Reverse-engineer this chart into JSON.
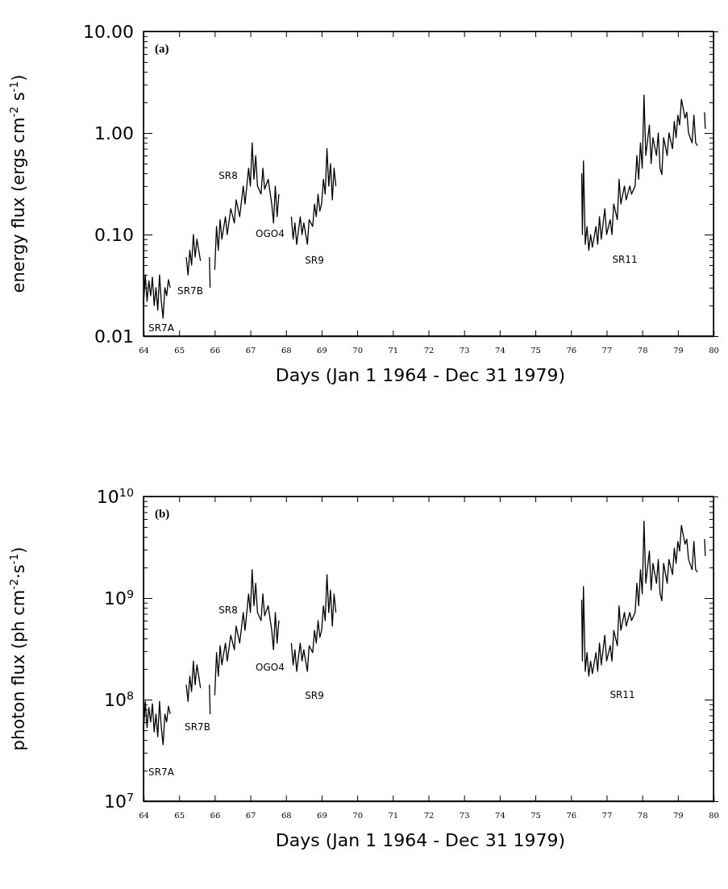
{
  "chart_data": [
    {
      "type": "line",
      "xlabel": "Days (Jan 1 1964 - Dec 31 1979)",
      "ylabel": "energy flux (ergs cm$^{-2}$ s$^{-1}$)",
      "log": true,
      "xlim": [
        64,
        80
      ],
      "xticks": [
        64,
        65,
        66,
        67,
        68,
        69,
        70,
        71,
        72,
        73,
        74,
        75,
        76,
        77,
        78,
        79,
        80
      ],
      "ylim": [
        0.01,
        10
      ],
      "yticks": [
        {
          "value": 0.01,
          "label": "0.01"
        },
        {
          "value": 0.02,
          "label": null
        },
        {
          "value": 0.03,
          "label": null
        },
        {
          "value": 0.04,
          "label": null
        },
        {
          "value": 0.05,
          "label": null
        },
        {
          "value": 0.06,
          "label": null
        },
        {
          "value": 0.07,
          "label": null
        },
        {
          "value": 0.08,
          "label": null
        },
        {
          "value": 0.09,
          "label": null
        },
        {
          "value": 0.1,
          "label": "0.10"
        },
        {
          "value": 0.2,
          "label": null
        },
        {
          "value": 0.3,
          "label": null
        },
        {
          "value": 0.4,
          "label": null
        },
        {
          "value": 0.5,
          "label": null
        },
        {
          "value": 0.6,
          "label": null
        },
        {
          "value": 0.7,
          "label": null
        },
        {
          "value": 0.8,
          "label": null
        },
        {
          "value": 0.9,
          "label": null
        },
        {
          "value": 1,
          "label": "1.00"
        },
        {
          "value": 2,
          "label": null
        },
        {
          "value": 3,
          "label": null
        },
        {
          "value": 4,
          "label": null
        },
        {
          "value": 5,
          "label": null
        },
        {
          "value": 6,
          "label": null
        },
        {
          "value": 7,
          "label": null
        },
        {
          "value": 8,
          "label": null
        },
        {
          "value": 9,
          "label": null
        },
        {
          "value": 10,
          "label": "10.00"
        }
      ],
      "annotations": [
        "(a)",
        "SR7A",
        "SR7B",
        "SR8",
        "OGO4",
        "SR9",
        "SR11"
      ],
      "x": [
        64.0,
        64.05,
        64.1,
        64.15,
        64.2,
        64.25,
        64.3,
        64.35,
        64.4,
        64.45,
        64.5,
        64.55,
        64.6,
        64.65,
        64.7,
        64.75,
        64.9,
        65.2,
        65.25,
        65.3,
        65.35,
        65.4,
        65.45,
        65.5,
        65.55,
        65.6,
        65.7,
        65.85,
        65.87,
        65.95,
        66.0,
        66.05,
        66.1,
        66.15,
        66.2,
        66.3,
        66.35,
        66.45,
        66.55,
        66.6,
        66.7,
        66.8,
        66.85,
        66.95,
        67.0,
        67.05,
        67.1,
        67.15,
        67.2,
        67.3,
        67.35,
        67.4,
        67.5,
        67.6,
        67.65,
        67.7,
        67.75,
        67.8,
        68.0,
        68.15,
        68.2,
        68.25,
        68.3,
        68.4,
        68.45,
        68.5,
        68.6,
        68.65,
        68.75,
        68.8,
        68.85,
        68.9,
        68.95,
        69.0,
        69.05,
        69.1,
        69.15,
        69.2,
        69.25,
        69.3,
        69.35,
        69.4,
        72.0,
        76.3,
        76.32,
        76.35,
        76.4,
        76.45,
        76.5,
        76.55,
        76.6,
        76.7,
        76.75,
        76.8,
        76.85,
        76.95,
        77.0,
        77.1,
        77.15,
        77.2,
        77.3,
        77.35,
        77.4,
        77.5,
        77.55,
        77.65,
        77.7,
        77.8,
        77.85,
        77.9,
        77.95,
        78.0,
        78.05,
        78.1,
        78.2,
        78.25,
        78.3,
        78.4,
        78.45,
        78.5,
        78.55,
        78.6,
        78.7,
        78.75,
        78.85,
        78.9,
        78.95,
        79.0,
        79.05,
        79.1,
        79.2,
        79.25,
        79.3,
        79.4,
        79.45,
        79.5,
        79.55,
        79.65,
        79.75,
        79.77
      ],
      "series": [
        {
          "color": "#000000",
          "values": [
            0.02,
            0.04,
            0.022,
            0.035,
            0.025,
            0.038,
            0.02,
            0.03,
            0.018,
            0.04,
            0.022,
            0.015,
            0.03,
            0.025,
            0.036,
            0.03,
            null,
            0.06,
            0.04,
            0.07,
            0.05,
            0.1,
            0.06,
            0.09,
            0.07,
            0.055,
            null,
            0.06,
            0.03,
            null,
            0.045,
            0.12,
            0.07,
            0.14,
            0.09,
            0.15,
            0.1,
            0.18,
            0.13,
            0.22,
            0.15,
            0.3,
            0.2,
            0.45,
            0.3,
            0.8,
            0.35,
            0.6,
            0.3,
            0.25,
            0.45,
            0.28,
            0.35,
            0.2,
            0.13,
            0.3,
            0.15,
            0.25,
            null,
            0.15,
            0.09,
            0.13,
            0.08,
            0.15,
            0.1,
            0.13,
            0.08,
            0.14,
            0.12,
            0.2,
            0.15,
            0.25,
            0.17,
            0.2,
            0.35,
            0.25,
            0.7,
            0.3,
            0.5,
            0.22,
            0.45,
            0.3,
            null,
            0.4,
            0.1,
            0.53,
            0.08,
            0.12,
            0.07,
            0.1,
            0.075,
            0.12,
            0.08,
            0.15,
            0.09,
            0.18,
            0.1,
            0.14,
            0.1,
            0.2,
            0.14,
            0.35,
            0.2,
            0.3,
            0.22,
            0.3,
            0.25,
            0.3,
            0.6,
            0.35,
            0.8,
            0.45,
            2.36,
            0.6,
            1.2,
            0.5,
            0.9,
            0.6,
            1.0,
            0.45,
            0.39,
            0.9,
            0.6,
            1.0,
            0.7,
            1.3,
            0.9,
            1.5,
            1.2,
            2.15,
            1.4,
            1.6,
            1.0,
            0.8,
            1.5,
            0.8,
            0.75,
            null,
            1.6,
            1.1
          ]
        }
      ]
    },
    {
      "type": "line",
      "xlabel": "Days (Jan 1 1964 - Dec 31 1979)",
      "ylabel": "photon flux (ph cm$^{-2}$·s$^{-1}$)",
      "log": true,
      "xlim": [
        64,
        80
      ],
      "xticks": [
        64,
        65,
        66,
        67,
        68,
        69,
        70,
        71,
        72,
        73,
        74,
        75,
        76,
        77,
        78,
        79,
        80
      ],
      "ylim": [
        10000000.0,
        10000000000.0
      ],
      "yticks": [
        {
          "value": 10000000.0,
          "label": "10$^{7}$"
        },
        {
          "value": 20000000.0,
          "label": null
        },
        {
          "value": 30000000.0,
          "label": null
        },
        {
          "value": 40000000.0,
          "label": null
        },
        {
          "value": 50000000.0,
          "label": null
        },
        {
          "value": 60000000.0,
          "label": null
        },
        {
          "value": 70000000.0,
          "label": null
        },
        {
          "value": 80000000.0,
          "label": null
        },
        {
          "value": 90000000.0,
          "label": null
        },
        {
          "value": 100000000.0,
          "label": "10$^{8}$"
        },
        {
          "value": 200000000.0,
          "label": null
        },
        {
          "value": 300000000.0,
          "label": null
        },
        {
          "value": 400000000.0,
          "label": null
        },
        {
          "value": 500000000.0,
          "label": null
        },
        {
          "value": 600000000.0,
          "label": null
        },
        {
          "value": 700000000.0,
          "label": null
        },
        {
          "value": 800000000.0,
          "label": null
        },
        {
          "value": 900000000.0,
          "label": null
        },
        {
          "value": 1000000000.0,
          "label": "10$^{9}$"
        },
        {
          "value": 2000000000.0,
          "label": null
        },
        {
          "value": 3000000000.0,
          "label": null
        },
        {
          "value": 4000000000.0,
          "label": null
        },
        {
          "value": 5000000000.0,
          "label": null
        },
        {
          "value": 6000000000.0,
          "label": null
        },
        {
          "value": 7000000000.0,
          "label": null
        },
        {
          "value": 8000000000.0,
          "label": null
        },
        {
          "value": 9000000000.0,
          "label": null
        },
        {
          "value": 10000000000.0,
          "label": "10$^{10}$"
        }
      ],
      "annotations": [
        "(b)",
        "SR7A",
        "SR7B",
        "SR8",
        "OGO4",
        "SR9",
        "SR11"
      ],
      "x": [
        64.0,
        64.05,
        64.1,
        64.15,
        64.2,
        64.25,
        64.3,
        64.35,
        64.4,
        64.45,
        64.5,
        64.55,
        64.6,
        64.65,
        64.7,
        64.75,
        64.9,
        65.2,
        65.25,
        65.3,
        65.35,
        65.4,
        65.45,
        65.5,
        65.55,
        65.6,
        65.7,
        65.85,
        65.87,
        65.95,
        66.0,
        66.05,
        66.1,
        66.15,
        66.2,
        66.3,
        66.35,
        66.45,
        66.55,
        66.6,
        66.7,
        66.8,
        66.85,
        66.95,
        67.0,
        67.05,
        67.1,
        67.15,
        67.2,
        67.3,
        67.35,
        67.4,
        67.5,
        67.6,
        67.65,
        67.7,
        67.75,
        67.8,
        68.0,
        68.15,
        68.2,
        68.25,
        68.3,
        68.4,
        68.45,
        68.5,
        68.6,
        68.65,
        68.75,
        68.8,
        68.85,
        68.9,
        68.95,
        69.0,
        69.05,
        69.1,
        69.15,
        69.2,
        69.25,
        69.3,
        69.35,
        69.4,
        72.0,
        76.3,
        76.32,
        76.35,
        76.4,
        76.45,
        76.5,
        76.55,
        76.6,
        76.7,
        76.75,
        76.8,
        76.85,
        76.95,
        77.0,
        77.1,
        77.15,
        77.2,
        77.3,
        77.35,
        77.4,
        77.5,
        77.55,
        77.65,
        77.7,
        77.8,
        77.85,
        77.9,
        77.95,
        78.0,
        78.05,
        78.1,
        78.2,
        78.25,
        78.3,
        78.4,
        78.45,
        78.5,
        78.55,
        78.6,
        78.7,
        78.75,
        78.85,
        78.9,
        78.95,
        79.0,
        79.05,
        79.1,
        79.2,
        79.25,
        79.3,
        79.4,
        79.45,
        79.5,
        79.55,
        79.65,
        79.75,
        79.77
      ],
      "series": [
        {
          "color": "#000000",
          "values": [
            48000000.0,
            96000000.0,
            53000000.0,
            84000000.0,
            60000000.0,
            91000000.0,
            48000000.0,
            72000000.0,
            43000000.0,
            96000000.0,
            53000000.0,
            36000000.0,
            72000000.0,
            60000000.0,
            86000000.0,
            72000000.0,
            null,
            140000000.0,
            96000000.0,
            170000000.0,
            120000000.0,
            240000000.0,
            140000000.0,
            220000000.0,
            170000000.0,
            130000000.0,
            null,
            140000000.0,
            72000000.0,
            null,
            110000000.0,
            290000000.0,
            170000000.0,
            340000000.0,
            220000000.0,
            360000000.0,
            240000000.0,
            430000000.0,
            310000000.0,
            530000000.0,
            360000000.0,
            720000000.0,
            480000000.0,
            1100000000.0,
            720000000.0,
            1900000000.0,
            840000000.0,
            1400000000.0,
            720000000.0,
            600000000.0,
            1100000000.0,
            670000000.0,
            840000000.0,
            480000000.0,
            310000000.0,
            720000000.0,
            360000000.0,
            600000000.0,
            null,
            360000000.0,
            220000000.0,
            310000000.0,
            190000000.0,
            360000000.0,
            240000000.0,
            310000000.0,
            190000000.0,
            340000000.0,
            290000000.0,
            480000000.0,
            360000000.0,
            600000000.0,
            410000000.0,
            480000000.0,
            840000000.0,
            600000000.0,
            1700000000.0,
            720000000.0,
            1200000000.0,
            530000000.0,
            1100000000.0,
            720000000.0,
            null,
            960000000.0,
            240000000.0,
            1300000000.0,
            190000000.0,
            290000000.0,
            170000000.0,
            240000000.0,
            180000000.0,
            290000000.0,
            190000000.0,
            360000000.0,
            220000000.0,
            430000000.0,
            240000000.0,
            340000000.0,
            240000000.0,
            480000000.0,
            340000000.0,
            840000000.0,
            480000000.0,
            720000000.0,
            530000000.0,
            720000000.0,
            600000000.0,
            720000000.0,
            1400000000.0,
            840000000.0,
            1900000000.0,
            1100000000.0,
            5700000000.0,
            1400000000.0,
            2900000000.0,
            1200000000.0,
            2200000000.0,
            1400000000.0,
            2400000000.0,
            1100000000.0,
            940000000.0,
            2200000000.0,
            1400000000.0,
            2400000000.0,
            1700000000.0,
            3100000000.0,
            2200000000.0,
            3600000000.0,
            2900000000.0,
            5200000000.0,
            3400000000.0,
            3800000000.0,
            2400000000.0,
            1900000000.0,
            3600000000.0,
            1900000000.0,
            1800000000.0,
            null,
            3800000000.0,
            2600000000.0
          ]
        }
      ]
    }
  ]
}
